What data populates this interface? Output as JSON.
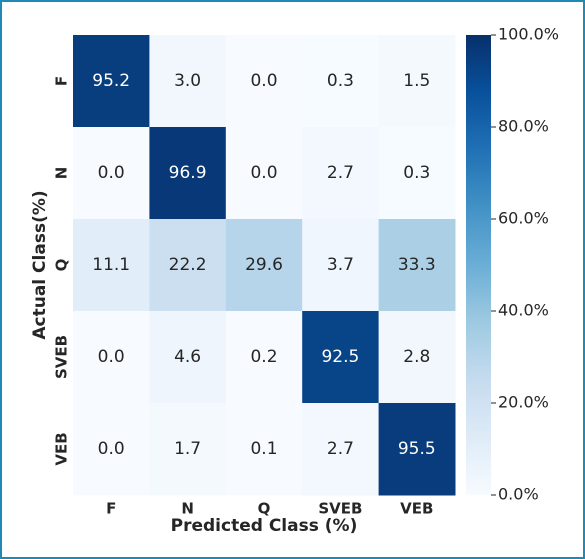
{
  "chart_data": {
    "type": "heatmap",
    "xlabel": "Predicted Class (%)",
    "ylabel": "Actual Class(%)",
    "x_categories": [
      "F",
      "N",
      "Q",
      "SVEB",
      "VEB"
    ],
    "y_categories": [
      "F",
      "N",
      "Q",
      "SVEB",
      "VEB"
    ],
    "values": [
      [
        95.2,
        3.0,
        0.0,
        0.3,
        1.5
      ],
      [
        0.0,
        96.9,
        0.0,
        2.7,
        0.3
      ],
      [
        11.1,
        22.2,
        29.6,
        3.7,
        33.3
      ],
      [
        0.0,
        4.6,
        0.2,
        92.5,
        2.8
      ],
      [
        0.0,
        1.7,
        0.1,
        2.7,
        95.5
      ]
    ],
    "value_labels": [
      [
        "95.2",
        "3.0",
        "0.0",
        "0.3",
        "1.5"
      ],
      [
        "0.0",
        "96.9",
        "0.0",
        "2.7",
        "0.3"
      ],
      [
        "11.1",
        "22.2",
        "29.6",
        "3.7",
        "33.3"
      ],
      [
        "0.0",
        "4.6",
        "0.2",
        "92.5",
        "2.8"
      ],
      [
        "0.0",
        "1.7",
        "0.1",
        "2.7",
        "95.5"
      ]
    ],
    "colormap": "Blues",
    "clim": [
      0,
      100
    ],
    "cticks": [
      {
        "value": 0,
        "label": "0.0%"
      },
      {
        "value": 20,
        "label": "20.0%"
      },
      {
        "value": 40,
        "label": "40.0%"
      },
      {
        "value": 60,
        "label": "60.0%"
      },
      {
        "value": 80,
        "label": "80.0%"
      },
      {
        "value": 100,
        "label": "100.0%"
      }
    ]
  }
}
